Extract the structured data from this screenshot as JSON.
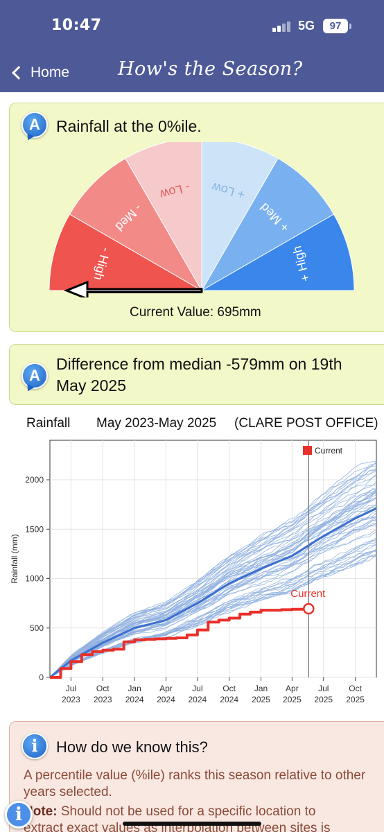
{
  "status_bar": {
    "time": "10:47",
    "network": "5G",
    "battery": "97",
    "icons": [
      "signal-icon",
      "battery-icon"
    ]
  },
  "header": {
    "back_label": "Home",
    "title": "How's the Season?",
    "background": "#4e5a98"
  },
  "gauge_card": {
    "badge": "A",
    "title": "Rainfall at the 0%ile.",
    "segments": [
      {
        "label": "- High",
        "color": "#f0544f"
      },
      {
        "label": "- Med",
        "color": "#f28a88"
      },
      {
        "label": "- Low",
        "color": "#f6c9ca"
      },
      {
        "label": "+ Low",
        "color": "#cce3f8"
      },
      {
        "label": "+ Med",
        "color": "#79b1f0"
      },
      {
        "label": "+ High",
        "color": "#3a86ea"
      }
    ],
    "needle_percentile": 0,
    "current_value": "Current Value: 695mm"
  },
  "difference_card": {
    "badge": "A",
    "title_line1": "Difference from median -579mm on 19th",
    "title_line2": "May 2025"
  },
  "chart_header": {
    "label": "Rainfall",
    "period": "May 2023-May 2025",
    "station": "(CLARE POST OFFICE)"
  },
  "chart_data": {
    "type": "line",
    "ylabel": "Rainfall (mm)",
    "ylim": [
      0,
      2400
    ],
    "yticks": [
      0,
      500,
      1000,
      1500,
      2000
    ],
    "x_domain": [
      "2023-05-01",
      "2025-12-01"
    ],
    "xticks": [
      {
        "date": "2023-07-01",
        "line1": "Jul",
        "line2": "2023"
      },
      {
        "date": "2023-10-01",
        "line1": "Oct",
        "line2": "2023"
      },
      {
        "date": "2024-01-01",
        "line1": "Jan",
        "line2": "2024"
      },
      {
        "date": "2024-04-01",
        "line1": "Apr",
        "line2": "2024"
      },
      {
        "date": "2024-07-01",
        "line1": "Jul",
        "line2": "2024"
      },
      {
        "date": "2024-10-01",
        "line1": "Oct",
        "line2": "2024"
      },
      {
        "date": "2025-01-01",
        "line1": "Jan",
        "line2": "2025"
      },
      {
        "date": "2025-04-01",
        "line1": "Apr",
        "line2": "2025"
      },
      {
        "date": "2025-07-01",
        "line1": "Jul",
        "line2": "2025"
      },
      {
        "date": "2025-10-01",
        "line1": "Oct",
        "line2": "2025"
      }
    ],
    "current_marker_date": "2025-05-19",
    "legend": {
      "label": "Current",
      "placement": "top-right",
      "color": "#e8302a"
    },
    "annotation": "Current",
    "grid": true,
    "series": [
      {
        "name": "Current",
        "color": "#e8302a",
        "points": [
          [
            "2023-05-01",
            0
          ],
          [
            "2023-06-01",
            90
          ],
          [
            "2023-07-01",
            160
          ],
          [
            "2023-08-01",
            230
          ],
          [
            "2023-09-01",
            260
          ],
          [
            "2023-10-01",
            275
          ],
          [
            "2023-11-01",
            285
          ],
          [
            "2023-12-01",
            360
          ],
          [
            "2024-01-01",
            380
          ],
          [
            "2024-02-01",
            385
          ],
          [
            "2024-03-01",
            390
          ],
          [
            "2024-04-01",
            395
          ],
          [
            "2024-05-01",
            400
          ],
          [
            "2024-06-01",
            430
          ],
          [
            "2024-07-01",
            480
          ],
          [
            "2024-08-01",
            560
          ],
          [
            "2024-09-01",
            580
          ],
          [
            "2024-10-01",
            600
          ],
          [
            "2024-11-01",
            640
          ],
          [
            "2024-12-01",
            660
          ],
          [
            "2025-01-01",
            680
          ],
          [
            "2025-02-01",
            680
          ],
          [
            "2025-03-01",
            685
          ],
          [
            "2025-04-01",
            690
          ],
          [
            "2025-05-19",
            695
          ]
        ]
      },
      {
        "color": "#3d6fcf",
        "points": [
          [
            "2023-05-01",
            0
          ],
          [
            "2023-07-01",
            170
          ],
          [
            "2023-10-01",
            350
          ],
          [
            "2024-01-01",
            500
          ],
          [
            "2024-04-01",
            580
          ],
          [
            "2024-07-01",
            750
          ],
          [
            "2024-10-01",
            950
          ],
          [
            "2025-01-01",
            1100
          ],
          [
            "2025-04-01",
            1230
          ],
          [
            "2025-07-01",
            1430
          ],
          [
            "2025-10-01",
            1610
          ],
          [
            "2025-12-01",
            1710
          ]
        ]
      }
    ]
  },
  "info_card": {
    "badge": "i",
    "title": "How do we know this?",
    "body": "A percentile value (%ile) ranks this season relative to other years selected.",
    "note_label": "Note:",
    "note_text": "Should not be used for a specific location to",
    "note_text_cut": "extract exact values as interpolation between sites is"
  },
  "floating_info_button": "i"
}
